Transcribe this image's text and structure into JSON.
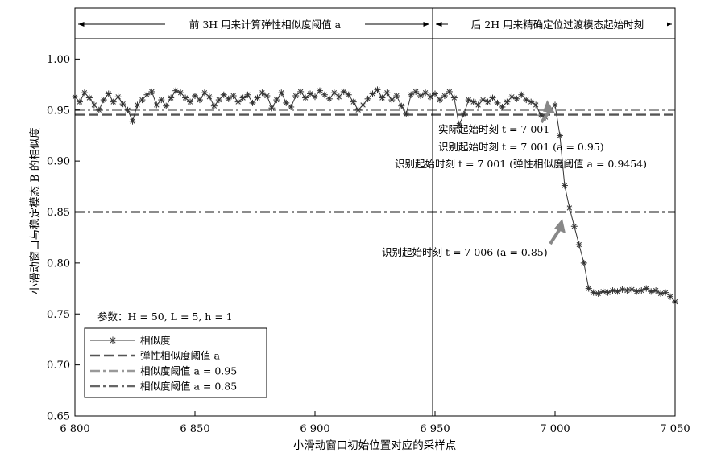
{
  "chart_data": {
    "type": "line",
    "title": "",
    "xlabel": "小滑动窗口初始位置对应的采样点",
    "ylabel": "小滑动窗口与稳定模态 B 的相似度",
    "xlim": [
      6800,
      7050
    ],
    "ylim": [
      0.65,
      1.05
    ],
    "xticks": [
      6800,
      6850,
      6900,
      6950,
      7000,
      7050
    ],
    "xtick_labels": [
      "6 800",
      "6 850",
      "6 900",
      "6 950",
      "7 000",
      "7 050"
    ],
    "yticks": [
      0.65,
      0.7,
      0.75,
      0.8,
      0.85,
      0.9,
      0.95,
      1.0
    ],
    "ytick_labels": [
      "0.65",
      "0.70",
      "0.75",
      "0.80",
      "0.85",
      "0.90",
      "0.95",
      "1.00"
    ],
    "grid": false,
    "legend_position": "bottom-left",
    "params_text": "参数：H = 50, L = 5, h = 1",
    "regions": [
      {
        "label": "前 3H 用来计算弹性相似度阈值 a",
        "x_start": 6800,
        "x_end": 6950
      },
      {
        "label": "后 2H 用来精确定位过渡模态起始时刻",
        "x_start": 6950,
        "x_end": 7050
      }
    ],
    "series": [
      {
        "name": "相似度",
        "style": "solid-star",
        "color": "#333333",
        "x": [
          6800,
          6802,
          6804,
          6806,
          6808,
          6810,
          6812,
          6814,
          6816,
          6818,
          6820,
          6822,
          6824,
          6826,
          6828,
          6830,
          6832,
          6834,
          6836,
          6838,
          6840,
          6842,
          6844,
          6846,
          6848,
          6850,
          6852,
          6854,
          6856,
          6858,
          6860,
          6862,
          6864,
          6866,
          6868,
          6870,
          6872,
          6874,
          6876,
          6878,
          6880,
          6882,
          6884,
          6886,
          6888,
          6890,
          6892,
          6894,
          6896,
          6898,
          6900,
          6902,
          6904,
          6906,
          6908,
          6910,
          6912,
          6914,
          6916,
          6918,
          6920,
          6922,
          6924,
          6926,
          6928,
          6930,
          6932,
          6934,
          6936,
          6938,
          6940,
          6942,
          6944,
          6946,
          6948,
          6950,
          6952,
          6954,
          6956,
          6958,
          6960,
          6962,
          6964,
          6966,
          6968,
          6970,
          6972,
          6974,
          6976,
          6978,
          6980,
          6982,
          6984,
          6986,
          6988,
          6990,
          6992,
          6994,
          6996,
          6998,
          7000,
          7002,
          7004,
          7006,
          7008,
          7010,
          7012,
          7014,
          7016,
          7018,
          7020,
          7022,
          7024,
          7026,
          7028,
          7030,
          7032,
          7034,
          7036,
          7038,
          7040,
          7042,
          7044,
          7046,
          7048,
          7050
        ],
        "values": [
          0.963,
          0.958,
          0.967,
          0.962,
          0.955,
          0.95,
          0.96,
          0.966,
          0.958,
          0.963,
          0.956,
          0.95,
          0.939,
          0.955,
          0.96,
          0.965,
          0.968,
          0.955,
          0.96,
          0.954,
          0.962,
          0.969,
          0.967,
          0.962,
          0.958,
          0.964,
          0.96,
          0.967,
          0.963,
          0.954,
          0.96,
          0.965,
          0.961,
          0.964,
          0.958,
          0.962,
          0.965,
          0.957,
          0.962,
          0.967,
          0.964,
          0.952,
          0.96,
          0.967,
          0.957,
          0.953,
          0.964,
          0.968,
          0.962,
          0.966,
          0.963,
          0.969,
          0.965,
          0.961,
          0.967,
          0.963,
          0.968,
          0.965,
          0.958,
          0.95,
          0.955,
          0.961,
          0.966,
          0.97,
          0.962,
          0.967,
          0.96,
          0.964,
          0.954,
          0.946,
          0.965,
          0.968,
          0.964,
          0.967,
          0.963,
          0.966,
          0.96,
          0.964,
          0.968,
          0.962,
          0.935,
          0.946,
          0.96,
          0.958,
          0.955,
          0.96,
          0.958,
          0.962,
          0.957,
          0.953,
          0.958,
          0.963,
          0.961,
          0.965,
          0.96,
          0.958,
          0.955,
          0.945,
          0.943,
          0.95,
          0.955,
          0.925,
          0.876,
          0.854,
          0.836,
          0.818,
          0.8,
          0.775,
          0.771,
          0.77,
          0.772,
          0.771,
          0.773,
          0.772,
          0.774,
          0.773,
          0.774,
          0.772,
          0.773,
          0.775,
          0.772,
          0.773,
          0.77,
          0.771,
          0.767,
          0.762
        ]
      },
      {
        "name": "弹性相似度阈值 a",
        "style": "dashed",
        "color": "#555555",
        "value": 0.9454
      },
      {
        "name": "相似度阈值 a = 0.95",
        "style": "dashdot",
        "color": "#999999",
        "value": 0.95
      },
      {
        "name": "相似度阈值 a = 0.85",
        "style": "dashdot",
        "color": "#666666",
        "value": 0.85
      }
    ],
    "annotations": [
      {
        "text": "实际起始时刻 t = 7 001",
        "x": 7001
      },
      {
        "text": "识别起始时刻 t = 7 001 (a = 0.95)",
        "x": 7001
      },
      {
        "text": "识别起始时刻 t = 7 001 (弹性相似度阈值 a = 0.9454)",
        "x": 7001
      },
      {
        "text": "识别起始时刻 t = 7 006 (a = 0.85)",
        "x": 7006
      }
    ]
  }
}
